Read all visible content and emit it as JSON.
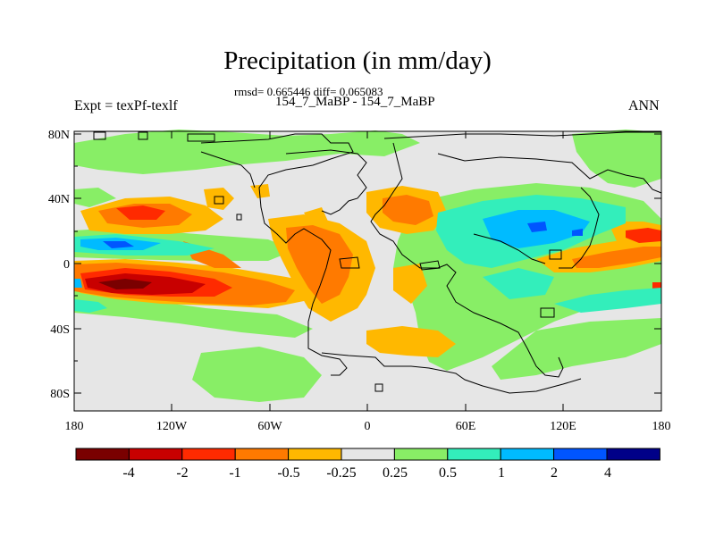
{
  "title": "Precipitation (in mm/day)",
  "stats": "rmsd= 0.665446 diff= 0.065083",
  "subtitle": "154_7_MaBP - 154_7_MaBP",
  "left_label": "Expt = texPf-texlf",
  "right_label": "ANN",
  "lat_ticks": [
    "80N",
    "40N",
    "0",
    "40S",
    "80S"
  ],
  "lon_ticks": [
    "180",
    "120W",
    "60W",
    "0",
    "60E",
    "120E",
    "180"
  ],
  "colorbar": {
    "levels": [
      "-4",
      "-2",
      "-1",
      "-0.5",
      "-0.25",
      "0.25",
      "0.5",
      "1",
      "2",
      "4"
    ],
    "colors": [
      "#7a0000",
      "#c80000",
      "#ff2a00",
      "#ff7a00",
      "#ffb800",
      "#e6e6e6",
      "#88ee66",
      "#33eebb",
      "#00bbff",
      "#0055ff",
      "#000088"
    ]
  },
  "map_colors": {
    "background": "#e6e6e6",
    "coastline": "#000000"
  }
}
